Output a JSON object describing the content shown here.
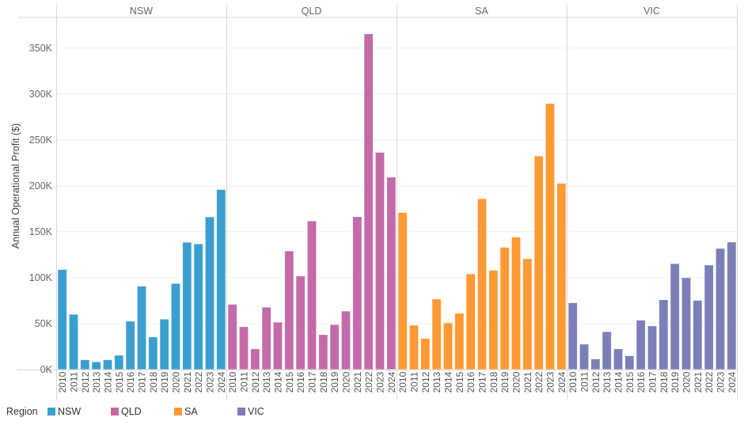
{
  "chart_data": {
    "type": "bar",
    "title": "",
    "xlabel": "",
    "ylabel": "Annual Operational Profit ($)",
    "ylim": [
      0,
      380000
    ],
    "y_ticks": [
      0,
      50000,
      100000,
      150000,
      200000,
      250000,
      300000,
      350000
    ],
    "y_tick_labels": [
      "0K",
      "50K",
      "100K",
      "150K",
      "200K",
      "250K",
      "300K",
      "350K"
    ],
    "grid": true,
    "facet_by": "Region",
    "categories": [
      "2010",
      "2011",
      "2012",
      "2013",
      "2014",
      "2015",
      "2016",
      "2017",
      "2018",
      "2019",
      "2020",
      "2021",
      "2022",
      "2023",
      "2024"
    ],
    "series": [
      {
        "name": "NSW",
        "color": "#3a9fcf",
        "values": [
          108600,
          59800,
          10300,
          8100,
          10300,
          15200,
          52300,
          90500,
          35100,
          54600,
          93400,
          138300,
          136500,
          165900,
          195700
        ]
      },
      {
        "name": "QLD",
        "color": "#c46aa8",
        "values": [
          70700,
          46300,
          22200,
          67600,
          51200,
          128800,
          101500,
          161500,
          37700,
          48600,
          63300,
          166100,
          365300,
          236200,
          209200
        ]
      },
      {
        "name": "SA",
        "color": "#ff9933",
        "values": [
          170700,
          48000,
          33600,
          76500,
          50600,
          60900,
          103800,
          185700,
          107800,
          132800,
          144000,
          120400,
          232200,
          289400,
          202600
        ]
      },
      {
        "name": "VIC",
        "color": "#7a7fb8",
        "values": [
          72400,
          27300,
          11200,
          40900,
          22200,
          14700,
          53400,
          47200,
          75600,
          115000,
          99700,
          75000,
          113500,
          131600,
          138500
        ]
      }
    ],
    "legend": {
      "title": "Region",
      "placement": "bottom-left",
      "entries": [
        "NSW",
        "QLD",
        "SA",
        "VIC"
      ]
    }
  }
}
